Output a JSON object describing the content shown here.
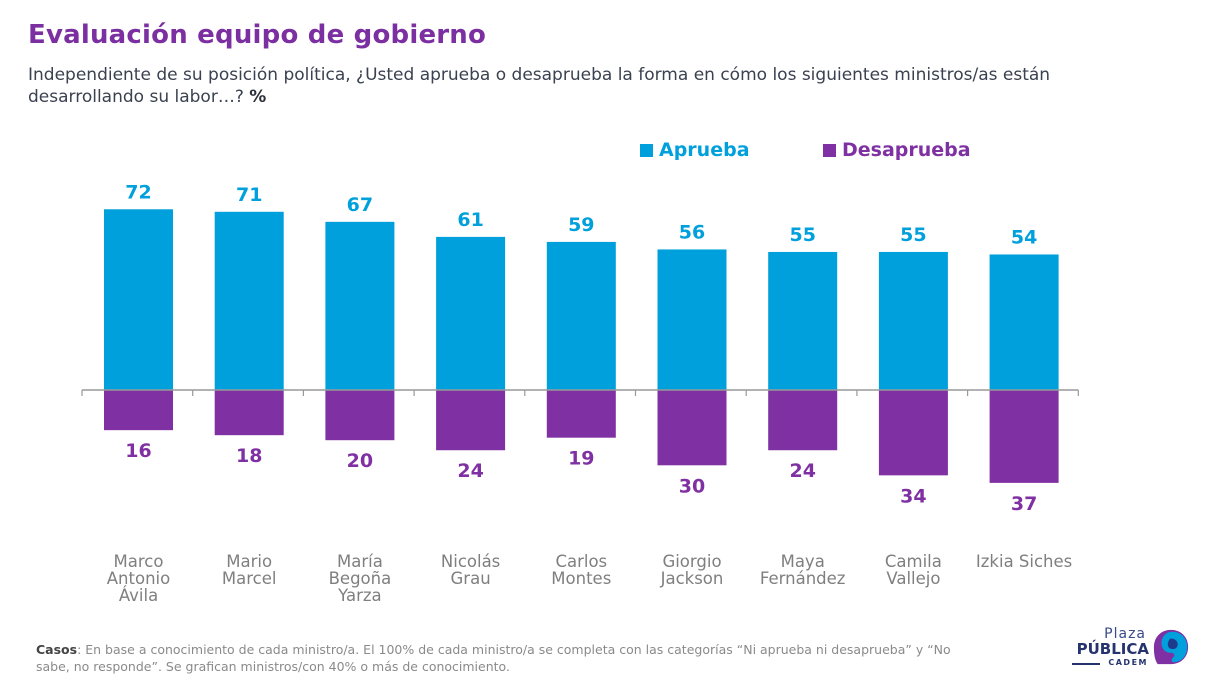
{
  "header": {
    "title": "Evaluación equipo de gobierno",
    "subtitle": "Independiente de su posición política, ¿Usted aprueba o desaprueba la forma en cómo los siguientes ministros/as están desarrollando su labor…?",
    "subtitle_unit": "%"
  },
  "colors": {
    "aprueba": "#00a0dc",
    "desaprueba": "#7f30a2",
    "title": "#7b2fa0",
    "axis": "#999999",
    "category_label": "#7f7f7f"
  },
  "chart_data": {
    "type": "bar",
    "title": "Evaluación equipo de gobierno",
    "xlabel": "",
    "ylabel": "%",
    "categories": [
      "Marco Antonio Ávila",
      "Mario Marcel",
      "María Begoña Yarza",
      "Nicolás Grau",
      "Carlos Montes",
      "Giorgio Jackson",
      "Maya Fernández",
      "Camila Vallejo",
      "Izkia Siches"
    ],
    "category_lines": [
      [
        "Marco",
        "Antonio",
        "Ávila"
      ],
      [
        "Mario",
        "Marcel"
      ],
      [
        "María",
        "Begoña",
        "Yarza"
      ],
      [
        "Nicolás",
        "Grau"
      ],
      [
        "Carlos",
        "Montes"
      ],
      [
        "Giorgio",
        "Jackson"
      ],
      [
        "Maya",
        "Fernández"
      ],
      [
        "Camila",
        "Vallejo"
      ],
      [
        "Izkia Siches"
      ]
    ],
    "series": [
      {
        "name": "Aprueba",
        "direction": "up",
        "values": [
          72,
          71,
          67,
          61,
          59,
          56,
          55,
          55,
          54
        ]
      },
      {
        "name": "Desaprueba",
        "direction": "down",
        "values": [
          16,
          18,
          20,
          24,
          19,
          30,
          24,
          34,
          37
        ]
      }
    ],
    "legend_position": "top-right",
    "grid": false
  },
  "footer": {
    "notes_label": "Casos",
    "notes_text": ": En base a conocimiento de cada ministro/a. El 100% de cada ministro/a se completa con las categorías “Ni aprueba ni desaprueba” y “No sabe, no responde”. Se grafican ministros/con 40% o más de conocimiento.",
    "logo": {
      "line1": "Plaza",
      "line2": "PÚBLICA",
      "line3": "CADEM"
    }
  }
}
